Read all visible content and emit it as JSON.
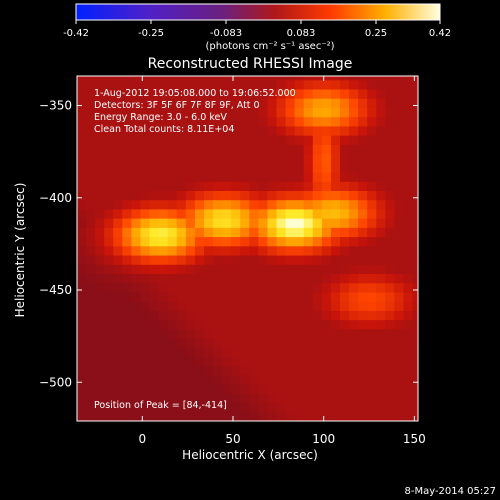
{
  "colorbar": {
    "ticks": [
      "-0.42",
      "-0.25",
      "-0.083",
      "0.083",
      "0.25",
      "0.42"
    ],
    "unit": "(photons cm⁻² s⁻¹ asec⁻²)"
  },
  "chart_data": {
    "type": "heatmap",
    "title": "Reconstructed RHESSI Image",
    "xlabel": "Heliocentric X (arcsec)",
    "ylabel": "Heliocentric Y (arcsec)",
    "xlim": [
      -36,
      152
    ],
    "ylim": [
      -521,
      -334
    ],
    "xticks": [
      0,
      50,
      100,
      150
    ],
    "yticks": [
      -350,
      -400,
      -450,
      -500
    ],
    "color_range": [
      -0.42,
      0.42
    ],
    "colorscale": "blue-purple-red-yellow-white",
    "peak": [
      84,
      -414
    ],
    "annotations": [
      "1-Aug-2012 19:05:08.000 to 19:06:52.000",
      "Detectors: 3F 5F 6F 7F 8F 9F, Att 0",
      "Energy Range: 3.0 - 6.0 keV",
      "Clean     Total counts: 8.11E+04",
      "Position of Peak = [84,-414]"
    ],
    "sources": [
      {
        "x": 84,
        "y": -414,
        "intensity": 0.42
      },
      {
        "x": 10,
        "y": -420,
        "intensity": 0.38
      },
      {
        "x": 45,
        "y": -412,
        "intensity": 0.36
      },
      {
        "x": 105,
        "y": -408,
        "intensity": 0.32
      },
      {
        "x": 100,
        "y": -352,
        "intensity": 0.3
      },
      {
        "x": 125,
        "y": -455,
        "intensity": 0.2
      }
    ]
  },
  "footer": {
    "timestamp": "8-May-2014 05:27"
  }
}
